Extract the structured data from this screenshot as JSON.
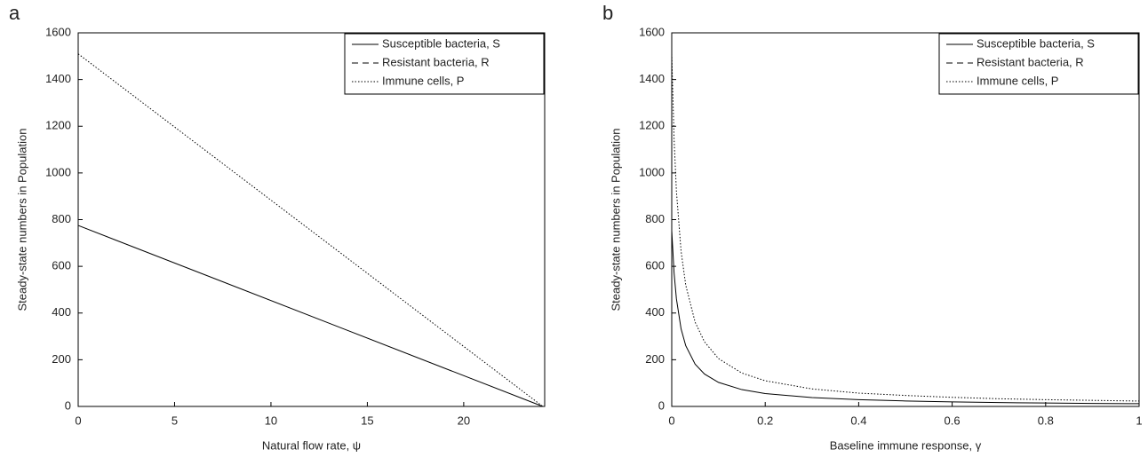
{
  "chart_data": [
    {
      "type": "line",
      "label": "a",
      "xlabel": "Natural flow rate, ψ",
      "ylabel": "Steady-state numbers in Population",
      "x": [
        0,
        24.1
      ],
      "series": [
        {
          "name": "Susceptible bacteria, S",
          "color": "#000000",
          "style": "solid",
          "values": [
            775,
            0
          ]
        },
        {
          "name": "Resistant bacteria, R",
          "color": "#000000",
          "style": "dashed",
          "values": [
            0,
            0
          ]
        },
        {
          "name": "Immune cells, P",
          "color": "#000000",
          "style": "dotted",
          "values": [
            1510,
            0
          ]
        }
      ],
      "xlim": [
        0,
        24.2
      ],
      "ylim": [
        0,
        1600
      ],
      "xticks": [
        0,
        5,
        10,
        15,
        20
      ],
      "yticks": [
        0,
        200,
        400,
        600,
        800,
        1000,
        1200,
        1400,
        1600
      ],
      "legend": "upper right"
    },
    {
      "type": "line",
      "label": "b",
      "xlabel": "Baseline immune response, γ",
      "ylabel": "Steady-state numbers in Population",
      "x": [
        0,
        0.005,
        0.01,
        0.02,
        0.03,
        0.05,
        0.07,
        0.1,
        0.15,
        0.2,
        0.3,
        0.4,
        0.5,
        0.6,
        0.7,
        0.8,
        0.9,
        1
      ],
      "series": [
        {
          "name": "Susceptible bacteria, S",
          "color": "#000000",
          "style": "solid",
          "values": [
            753,
            572,
            461,
            332,
            260,
            181,
            139,
            103,
            72,
            55,
            38,
            29,
            23.5,
            19.3,
            16.6,
            14.6,
            13,
            11.7
          ]
        },
        {
          "name": "Resistant bacteria, R",
          "color": "#000000",
          "style": "dashed",
          "values": [
            0,
            0,
            0,
            0,
            0,
            0,
            0,
            0,
            0,
            0,
            0,
            0,
            0,
            0,
            0,
            0,
            0,
            0
          ]
        },
        {
          "name": "Immune cells, P",
          "color": "#000000",
          "style": "dotted",
          "values": [
            1510,
            1145,
            922,
            664,
            519,
            361,
            277,
            205,
            143,
            110,
            75,
            57,
            47,
            39,
            33,
            29,
            26,
            23
          ]
        }
      ],
      "xlim": [
        0,
        1
      ],
      "ylim": [
        0,
        1600
      ],
      "xticks": [
        0,
        0.2,
        0.4,
        0.6,
        0.8,
        1
      ],
      "yticks": [
        0,
        200,
        400,
        600,
        800,
        1000,
        1200,
        1400,
        1600
      ],
      "legend": "upper right"
    }
  ]
}
